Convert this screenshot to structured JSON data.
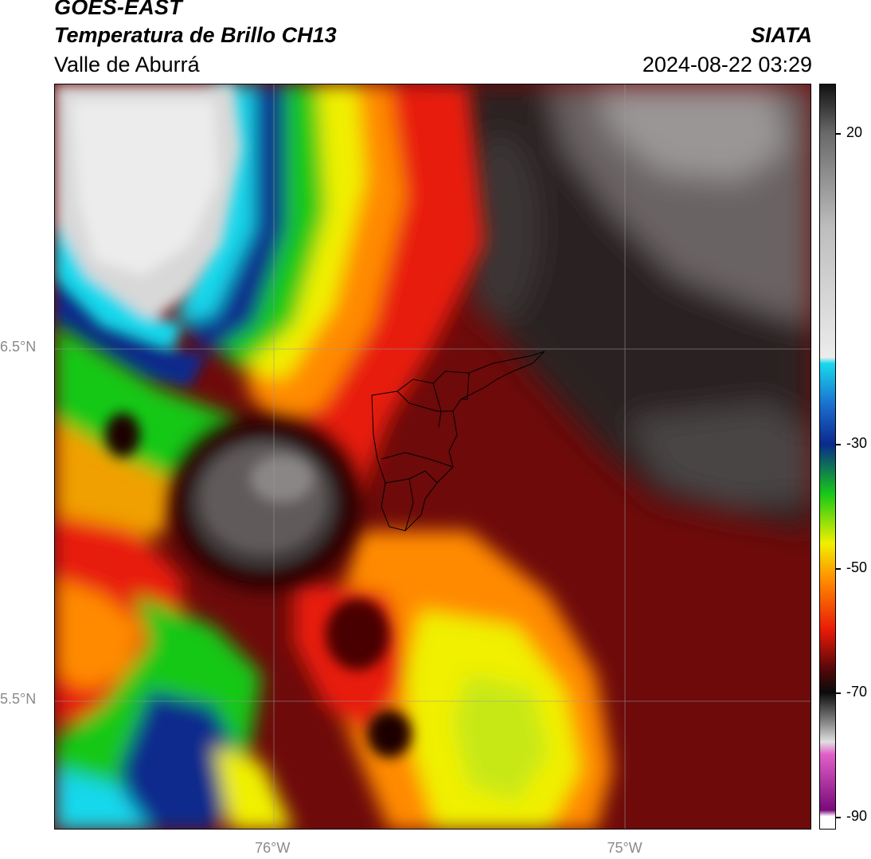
{
  "header": {
    "satellite": "GOES-EAST",
    "product": "Temperatura de Brillo CH13",
    "region": "Valle de Aburrá",
    "organization": "SIATA",
    "timestamp": "2024-08-22 03:29"
  },
  "axes": {
    "lat_ticks": [
      {
        "label": "6.5°N",
        "value": 6.5
      },
      {
        "label": "5.5°N",
        "value": 5.5
      }
    ],
    "lon_ticks": [
      {
        "label": "76°W",
        "value": -76.0
      },
      {
        "label": "75°W",
        "value": -75.0
      }
    ],
    "lat_range": [
      5.13,
      7.25
    ],
    "lon_range": [
      -76.62,
      -74.47
    ],
    "gridlines": true
  },
  "colorbar": {
    "range": [
      -92,
      28
    ],
    "ticks": [
      {
        "label": "20",
        "value": 20
      },
      {
        "label": "-30",
        "value": -30
      },
      {
        "label": "-50",
        "value": -50
      },
      {
        "label": "-70",
        "value": -70
      },
      {
        "label": "-90",
        "value": -90
      }
    ]
  },
  "colors": {
    "warm_max": "#111111",
    "cloud_white": "#ececec",
    "cyan": "#18d8ec",
    "blue": "#0a2a8c",
    "green": "#18c818",
    "yellow": "#f0f000",
    "orange": "#ff8a00",
    "red": "#e81a08",
    "dark_red": "#5a0808",
    "magenta": "#e060c8",
    "purple": "#7a0a7a"
  }
}
